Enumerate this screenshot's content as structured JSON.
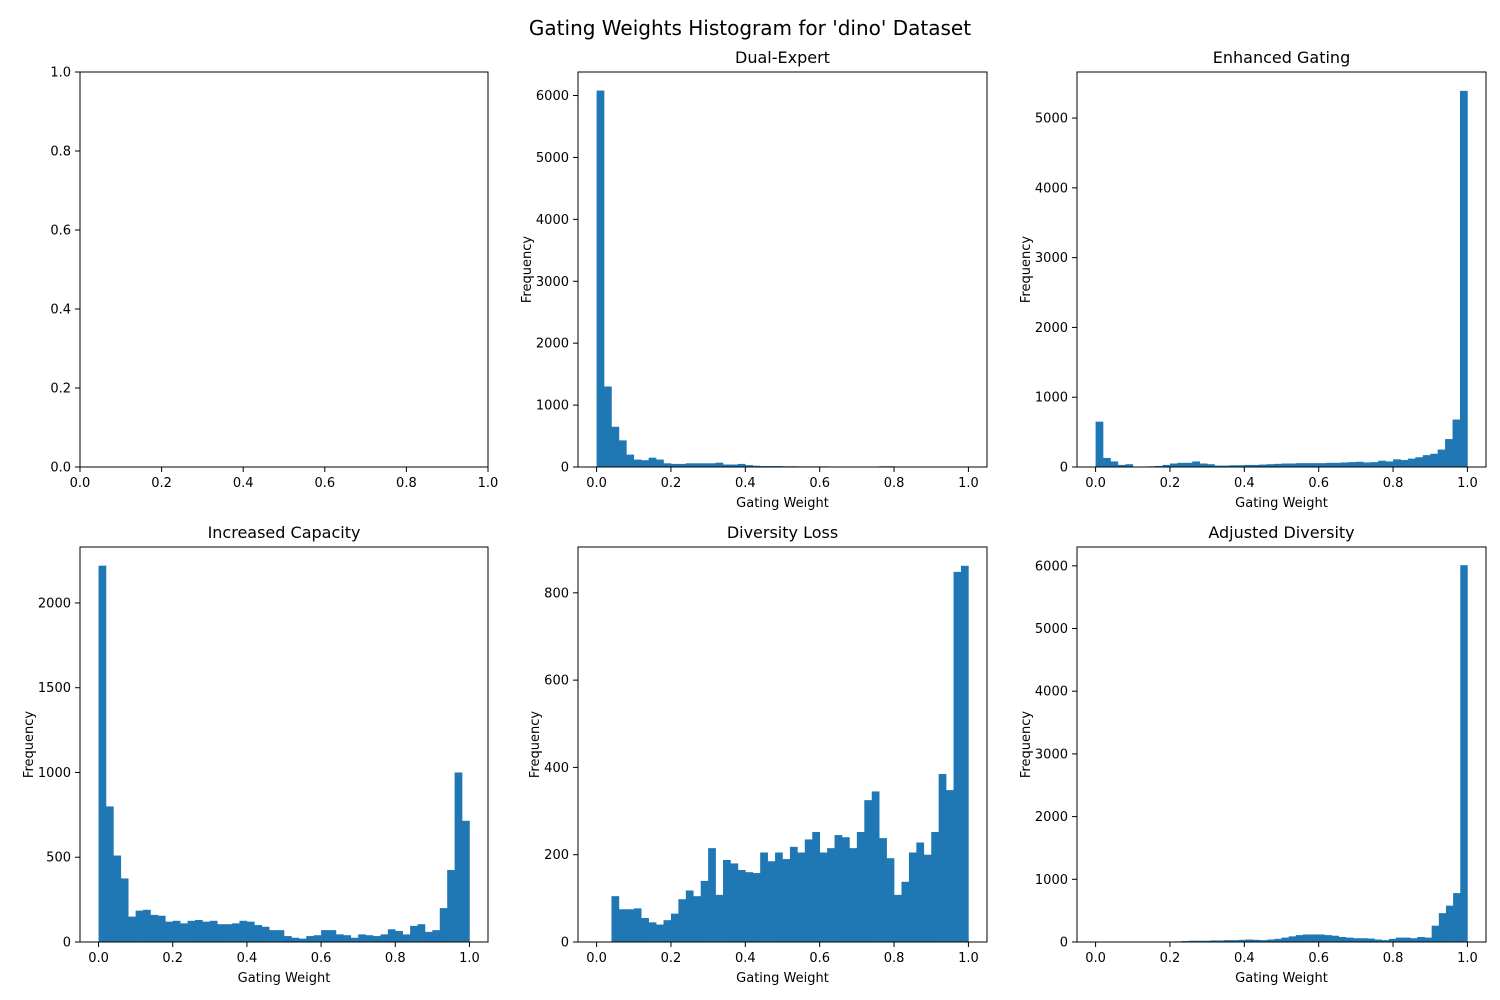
{
  "figure_title": "Gating Weights Histogram for 'dino' Dataset",
  "colors": {
    "bar": "#1f77b4",
    "axes": "#000000",
    "background": "#ffffff"
  },
  "chart_data": [
    {
      "type": "bar",
      "title": "",
      "xlabel": "",
      "ylabel": "",
      "empty": true,
      "xlim": [
        0,
        1
      ],
      "ylim": [
        0,
        1
      ],
      "xticks": [
        0.0,
        0.2,
        0.4,
        0.6,
        0.8,
        1.0
      ],
      "yticks": [
        0.0,
        0.2,
        0.4,
        0.6,
        0.8,
        1.0
      ],
      "xtick_labels": [
        "0.0",
        "0.2",
        "0.4",
        "0.6",
        "0.8",
        "1.0"
      ],
      "ytick_labels": [
        "0.0",
        "0.2",
        "0.4",
        "0.6",
        "0.8",
        "1.0"
      ],
      "bin_edges": [
        0,
        1
      ],
      "values": []
    },
    {
      "type": "bar",
      "title": "Dual-Expert",
      "xlabel": "Gating Weight",
      "ylabel": "Frequency",
      "xlim": [
        -0.05,
        1.05
      ],
      "ylim": [
        0,
        6380
      ],
      "xticks": [
        0.0,
        0.2,
        0.4,
        0.6,
        0.8,
        1.0
      ],
      "yticks": [
        0,
        1000,
        2000,
        3000,
        4000,
        5000,
        6000
      ],
      "xtick_labels": [
        "0.0",
        "0.2",
        "0.4",
        "0.6",
        "0.8",
        "1.0"
      ],
      "ytick_labels": [
        "0",
        "1000",
        "2000",
        "3000",
        "4000",
        "5000",
        "6000"
      ],
      "bin_edges": [
        0,
        1
      ],
      "values": [
        6080,
        1300,
        650,
        430,
        200,
        120,
        110,
        150,
        120,
        60,
        50,
        50,
        60,
        60,
        60,
        60,
        70,
        40,
        40,
        50,
        30,
        20,
        15,
        15,
        15,
        12,
        12,
        10,
        10,
        10,
        10,
        8,
        8,
        8,
        6,
        5,
        5,
        5,
        12,
        12,
        3,
        2,
        2,
        2,
        2,
        2,
        1,
        1,
        1,
        1
      ]
    },
    {
      "type": "bar",
      "title": "Enhanced Gating",
      "xlabel": "Gating Weight",
      "ylabel": "Frequency",
      "xlim": [
        -0.05,
        1.05
      ],
      "ylim": [
        0,
        5660
      ],
      "xticks": [
        0.0,
        0.2,
        0.4,
        0.6,
        0.8,
        1.0
      ],
      "yticks": [
        0,
        1000,
        2000,
        3000,
        4000,
        5000
      ],
      "xtick_labels": [
        "0.0",
        "0.2",
        "0.4",
        "0.6",
        "0.8",
        "1.0"
      ],
      "ytick_labels": [
        "0",
        "1000",
        "2000",
        "3000",
        "4000",
        "5000"
      ],
      "bin_edges": [
        0,
        1
      ],
      "values": [
        650,
        130,
        80,
        30,
        40,
        0,
        0,
        10,
        15,
        30,
        50,
        60,
        60,
        80,
        50,
        40,
        20,
        20,
        25,
        25,
        30,
        30,
        35,
        40,
        45,
        50,
        50,
        55,
        55,
        55,
        55,
        60,
        60,
        65,
        70,
        75,
        65,
        70,
        90,
        80,
        110,
        100,
        120,
        140,
        170,
        190,
        250,
        400,
        680,
        5390
      ]
    },
    {
      "type": "bar",
      "title": "Increased Capacity",
      "xlabel": "Gating Weight",
      "ylabel": "Frequency",
      "xlim": [
        -0.05,
        1.05
      ],
      "ylim": [
        0,
        2330
      ],
      "xticks": [
        0.0,
        0.2,
        0.4,
        0.6,
        0.8,
        1.0
      ],
      "yticks": [
        0,
        500,
        1000,
        1500,
        2000
      ],
      "xtick_labels": [
        "0.0",
        "0.2",
        "0.4",
        "0.6",
        "0.8",
        "1.0"
      ],
      "ytick_labels": [
        "0",
        "500",
        "1000",
        "1500",
        "2000"
      ],
      "bin_edges": [
        0,
        1
      ],
      "values": [
        2220,
        800,
        510,
        375,
        150,
        185,
        190,
        160,
        155,
        120,
        125,
        110,
        125,
        130,
        120,
        125,
        105,
        105,
        110,
        125,
        120,
        100,
        90,
        70,
        70,
        35,
        25,
        20,
        35,
        40,
        70,
        70,
        45,
        40,
        25,
        45,
        40,
        35,
        45,
        75,
        65,
        45,
        95,
        105,
        60,
        70,
        200,
        425,
        1000,
        715
      ]
    },
    {
      "type": "bar",
      "title": "Diversity Loss",
      "xlabel": "Gating Weight",
      "ylabel": "Frequency",
      "xlim": [
        -0.05,
        1.05
      ],
      "ylim": [
        0,
        905
      ],
      "xticks": [
        0.0,
        0.2,
        0.4,
        0.6,
        0.8,
        1.0
      ],
      "yticks": [
        0,
        200,
        400,
        600,
        800
      ],
      "xtick_labels": [
        "0.0",
        "0.2",
        "0.4",
        "0.6",
        "0.8",
        "1.0"
      ],
      "ytick_labels": [
        "0",
        "200",
        "400",
        "600",
        "800"
      ],
      "bin_edges": [
        0.04,
        1
      ],
      "values": [
        105,
        75,
        75,
        77,
        55,
        45,
        40,
        50,
        65,
        98,
        118,
        105,
        140,
        215,
        108,
        188,
        180,
        165,
        160,
        158,
        205,
        185,
        205,
        190,
        218,
        205,
        235,
        252,
        205,
        215,
        245,
        240,
        215,
        252,
        325,
        345,
        238,
        192,
        108,
        138,
        205,
        228,
        200,
        252,
        385,
        348,
        848,
        862
      ]
    },
    {
      "type": "bar",
      "title": "Adjusted Diversity",
      "xlabel": "Gating Weight",
      "ylabel": "Frequency",
      "xlim": [
        -0.05,
        1.05
      ],
      "ylim": [
        0,
        6300
      ],
      "xticks": [
        0.0,
        0.2,
        0.4,
        0.6,
        0.8,
        1.0
      ],
      "yticks": [
        0,
        1000,
        2000,
        3000,
        4000,
        5000,
        6000
      ],
      "xtick_labels": [
        "0.0",
        "0.2",
        "0.4",
        "0.6",
        "0.8",
        "1.0"
      ],
      "ytick_labels": [
        "0",
        "1000",
        "2000",
        "3000",
        "4000",
        "5000",
        "6000"
      ],
      "bin_edges": [
        0,
        1
      ],
      "values": [
        3,
        2,
        2,
        2,
        2,
        2,
        2,
        2,
        2,
        2,
        5,
        10,
        15,
        20,
        20,
        20,
        25,
        25,
        30,
        30,
        35,
        40,
        35,
        30,
        40,
        50,
        70,
        90,
        110,
        120,
        120,
        120,
        110,
        100,
        80,
        70,
        60,
        60,
        55,
        40,
        30,
        50,
        70,
        70,
        60,
        80,
        70,
        260,
        460,
        580,
        780,
        6010
      ]
    }
  ]
}
